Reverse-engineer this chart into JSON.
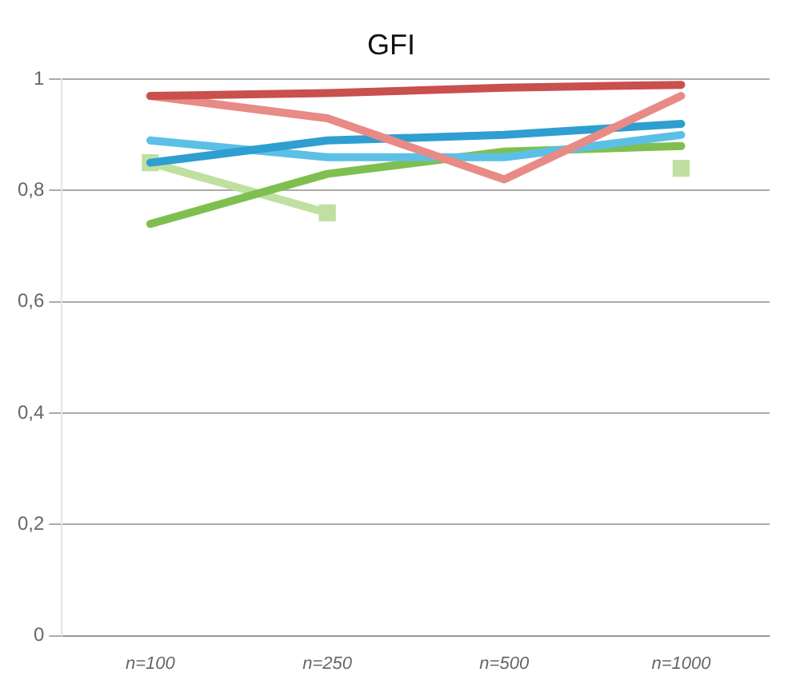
{
  "chart_data": {
    "type": "line",
    "title": "GFI",
    "categories": [
      "n=100",
      "n=250",
      "n=500",
      "n=1000"
    ],
    "series": [
      {
        "color": "#c9504c",
        "values": [
          0.97,
          0.975,
          0.985,
          0.99
        ]
      },
      {
        "color": "#e88a86",
        "values": [
          0.97,
          0.93,
          0.82,
          0.97
        ]
      },
      {
        "color": "#2e9fd0",
        "values": [
          0.85,
          0.89,
          0.9,
          0.92
        ]
      },
      {
        "color": "#5cc0e6",
        "values": [
          0.89,
          0.86,
          0.86,
          0.9
        ]
      },
      {
        "color": "#7fbf4f",
        "values": [
          0.74,
          0.83,
          0.87,
          0.88
        ]
      },
      {
        "color": "#bfe0a0",
        "values": [
          0.85,
          0.76,
          null,
          0.84
        ],
        "marker": "square"
      }
    ],
    "ylim": [
      0,
      1
    ],
    "yticks": [
      {
        "value": 0,
        "label": "0"
      },
      {
        "value": 0.2,
        "label": "0,2"
      },
      {
        "value": 0.4,
        "label": "0,4"
      },
      {
        "value": 0.6,
        "label": "0,6"
      },
      {
        "value": 0.8,
        "label": "0,8"
      },
      {
        "value": 1,
        "label": "1"
      }
    ],
    "grid": "y",
    "legend": false,
    "marker": "none",
    "line_style": "solid"
  }
}
